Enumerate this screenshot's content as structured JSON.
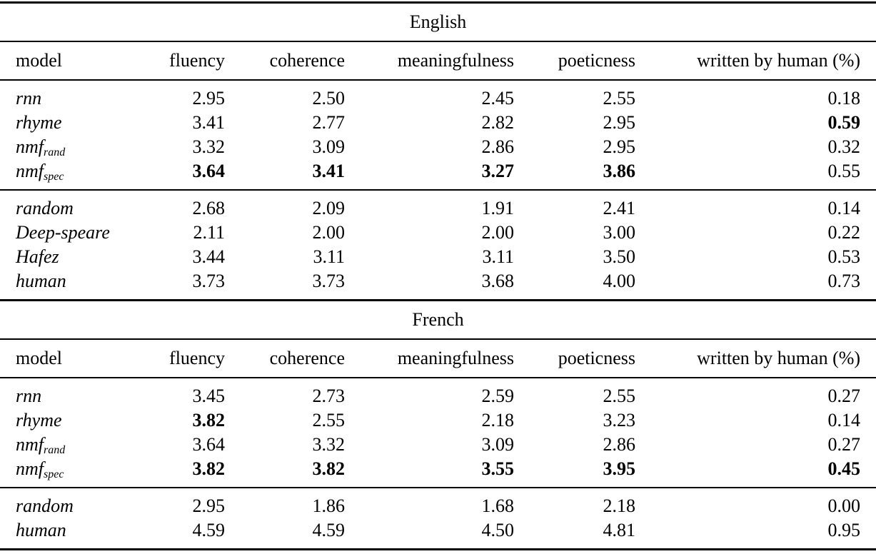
{
  "columns": [
    "model",
    "fluency",
    "coherence",
    "meaningfulness",
    "poeticness",
    "written by human (%)"
  ],
  "sections": [
    {
      "title": "English",
      "groups": [
        [
          {
            "base": "rnn",
            "sub": "",
            "values": [
              "2.95",
              "2.50",
              "2.45",
              "2.55",
              "0.18"
            ],
            "bold": [
              false,
              false,
              false,
              false,
              false
            ]
          },
          {
            "base": "rhyme",
            "sub": "",
            "values": [
              "3.41",
              "2.77",
              "2.82",
              "2.95",
              "0.59"
            ],
            "bold": [
              false,
              false,
              false,
              false,
              true
            ]
          },
          {
            "base": "nmf",
            "sub": "rand",
            "values": [
              "3.32",
              "3.09",
              "2.86",
              "2.95",
              "0.32"
            ],
            "bold": [
              false,
              false,
              false,
              false,
              false
            ]
          },
          {
            "base": "nmf",
            "sub": "spec",
            "values": [
              "3.64",
              "3.41",
              "3.27",
              "3.86",
              "0.55"
            ],
            "bold": [
              true,
              true,
              true,
              true,
              false
            ]
          }
        ],
        [
          {
            "base": "random",
            "sub": "",
            "values": [
              "2.68",
              "2.09",
              "1.91",
              "2.41",
              "0.14"
            ],
            "bold": [
              false,
              false,
              false,
              false,
              false
            ]
          },
          {
            "base": "Deep-speare",
            "sub": "",
            "values": [
              "2.11",
              "2.00",
              "2.00",
              "3.00",
              "0.22"
            ],
            "bold": [
              false,
              false,
              false,
              false,
              false
            ]
          },
          {
            "base": "Hafez",
            "sub": "",
            "values": [
              "3.44",
              "3.11",
              "3.11",
              "3.50",
              "0.53"
            ],
            "bold": [
              false,
              false,
              false,
              false,
              false
            ]
          },
          {
            "base": "human",
            "sub": "",
            "values": [
              "3.73",
              "3.73",
              "3.68",
              "4.00",
              "0.73"
            ],
            "bold": [
              false,
              false,
              false,
              false,
              false
            ]
          }
        ]
      ]
    },
    {
      "title": "French",
      "groups": [
        [
          {
            "base": "rnn",
            "sub": "",
            "values": [
              "3.45",
              "2.73",
              "2.59",
              "2.55",
              "0.27"
            ],
            "bold": [
              false,
              false,
              false,
              false,
              false
            ]
          },
          {
            "base": "rhyme",
            "sub": "",
            "values": [
              "3.82",
              "2.55",
              "2.18",
              "3.23",
              "0.14"
            ],
            "bold": [
              true,
              false,
              false,
              false,
              false
            ]
          },
          {
            "base": "nmf",
            "sub": "rand",
            "values": [
              "3.64",
              "3.32",
              "3.09",
              "2.86",
              "0.27"
            ],
            "bold": [
              false,
              false,
              false,
              false,
              false
            ]
          },
          {
            "base": "nmf",
            "sub": "spec",
            "values": [
              "3.82",
              "3.82",
              "3.55",
              "3.95",
              "0.45"
            ],
            "bold": [
              true,
              true,
              true,
              true,
              true
            ]
          }
        ],
        [
          {
            "base": "random",
            "sub": "",
            "values": [
              "2.95",
              "1.86",
              "1.68",
              "2.18",
              "0.00"
            ],
            "bold": [
              false,
              false,
              false,
              false,
              false
            ]
          },
          {
            "base": "human",
            "sub": "",
            "values": [
              "4.59",
              "4.59",
              "4.50",
              "4.81",
              "0.95"
            ],
            "bold": [
              false,
              false,
              false,
              false,
              false
            ]
          }
        ]
      ]
    }
  ]
}
